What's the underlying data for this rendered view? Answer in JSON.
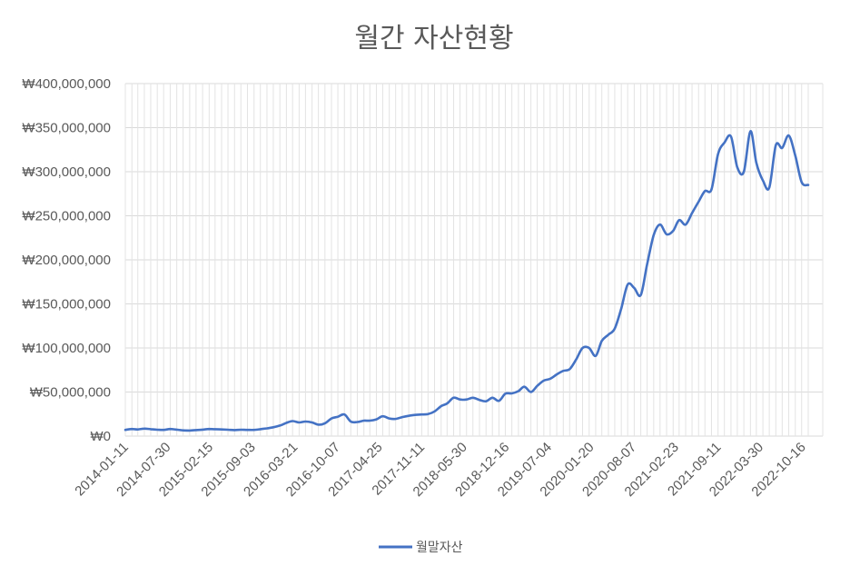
{
  "chart_data": {
    "type": "line",
    "title": "월간 자산현황",
    "xlabel": "",
    "ylabel": "",
    "ylim": [
      0,
      400000000
    ],
    "y_ticks": [
      0,
      50000000,
      100000000,
      150000000,
      200000000,
      250000000,
      300000000,
      350000000,
      400000000
    ],
    "y_tick_labels": [
      "₩0",
      "₩50,000,000",
      "₩100,000,000",
      "₩150,000,000",
      "₩200,000,000",
      "₩250,000,000",
      "₩300,000,000",
      "₩350,000,000",
      "₩400,000,000"
    ],
    "x_tick_labels": [
      "2014-01-11",
      "2014-07-30",
      "2015-02-15",
      "2015-09-03",
      "2016-03-21",
      "2016-10-07",
      "2017-04-25",
      "2017-11-11",
      "2018-05-30",
      "2018-12-16",
      "2019-07-04",
      "2020-01-20",
      "2020-08-07",
      "2021-02-23",
      "2021-09-11",
      "2022-03-30",
      "2022-10-16"
    ],
    "grid": "vertical and horizontal",
    "legend_position": "bottom",
    "line_color": "#4472C4",
    "series": [
      {
        "name": "월말자산",
        "points": [
          [
            "2014-01-11",
            7000000
          ],
          [
            "2014-02-11",
            8000000
          ],
          [
            "2014-03-11",
            7500000
          ],
          [
            "2014-04-11",
            8500000
          ],
          [
            "2014-05-11",
            7800000
          ],
          [
            "2014-06-11",
            7200000
          ],
          [
            "2014-07-11",
            7000000
          ],
          [
            "2014-08-11",
            8000000
          ],
          [
            "2014-09-11",
            7300000
          ],
          [
            "2014-10-11",
            6500000
          ],
          [
            "2014-11-11",
            6300000
          ],
          [
            "2014-12-11",
            6800000
          ],
          [
            "2015-01-11",
            7300000
          ],
          [
            "2015-02-11",
            8000000
          ],
          [
            "2015-03-11",
            7800000
          ],
          [
            "2015-04-11",
            7500000
          ],
          [
            "2015-05-11",
            7200000
          ],
          [
            "2015-06-11",
            6800000
          ],
          [
            "2015-07-11",
            7200000
          ],
          [
            "2015-08-11",
            7000000
          ],
          [
            "2015-09-11",
            7000000
          ],
          [
            "2015-10-11",
            7800000
          ],
          [
            "2015-11-11",
            8800000
          ],
          [
            "2015-12-11",
            10000000
          ],
          [
            "2016-01-11",
            12000000
          ],
          [
            "2016-02-11",
            15000000
          ],
          [
            "2016-03-11",
            17000000
          ],
          [
            "2016-04-11",
            15500000
          ],
          [
            "2016-05-11",
            16500000
          ],
          [
            "2016-06-11",
            15500000
          ],
          [
            "2016-07-11",
            13000000
          ],
          [
            "2016-08-11",
            14500000
          ],
          [
            "2016-09-11",
            20000000
          ],
          [
            "2016-10-11",
            22000000
          ],
          [
            "2016-11-11",
            24500000
          ],
          [
            "2016-12-11",
            16500000
          ],
          [
            "2017-01-11",
            16000000
          ],
          [
            "2017-02-11",
            17500000
          ],
          [
            "2017-03-11",
            17500000
          ],
          [
            "2017-04-11",
            19000000
          ],
          [
            "2017-05-11",
            22500000
          ],
          [
            "2017-06-11",
            20000000
          ],
          [
            "2017-07-11",
            19500000
          ],
          [
            "2017-08-11",
            21500000
          ],
          [
            "2017-09-11",
            23000000
          ],
          [
            "2017-10-11",
            24000000
          ],
          [
            "2017-11-11",
            24500000
          ],
          [
            "2017-12-11",
            25000000
          ],
          [
            "2018-01-11",
            28000000
          ],
          [
            "2018-02-11",
            34000000
          ],
          [
            "2018-03-11",
            37000000
          ],
          [
            "2018-04-11",
            43500000
          ],
          [
            "2018-05-11",
            41500000
          ],
          [
            "2018-06-11",
            41500000
          ],
          [
            "2018-07-11",
            43500000
          ],
          [
            "2018-08-11",
            41000000
          ],
          [
            "2018-09-11",
            39500000
          ],
          [
            "2018-10-11",
            43500000
          ],
          [
            "2018-11-11",
            40000000
          ],
          [
            "2018-12-11",
            48000000
          ],
          [
            "2019-01-11",
            48500000
          ],
          [
            "2019-02-11",
            51000000
          ],
          [
            "2019-03-11",
            56000000
          ],
          [
            "2019-04-11",
            50000000
          ],
          [
            "2019-05-11",
            57000000
          ],
          [
            "2019-06-11",
            63000000
          ],
          [
            "2019-07-11",
            65000000
          ],
          [
            "2019-08-11",
            70000000
          ],
          [
            "2019-09-11",
            74000000
          ],
          [
            "2019-10-11",
            76000000
          ],
          [
            "2019-11-11",
            87000000
          ],
          [
            "2019-12-11",
            100000000
          ],
          [
            "2020-01-11",
            100000000
          ],
          [
            "2020-02-11",
            91000000
          ],
          [
            "2020-03-11",
            108000000
          ],
          [
            "2020-04-11",
            115000000
          ],
          [
            "2020-05-11",
            122000000
          ],
          [
            "2020-06-11",
            145000000
          ],
          [
            "2020-07-11",
            172000000
          ],
          [
            "2020-08-11",
            168000000
          ],
          [
            "2020-09-11",
            160000000
          ],
          [
            "2020-10-11",
            195000000
          ],
          [
            "2020-11-11",
            228000000
          ],
          [
            "2020-12-11",
            240000000
          ],
          [
            "2021-01-11",
            229000000
          ],
          [
            "2021-02-11",
            233000000
          ],
          [
            "2021-03-11",
            245000000
          ],
          [
            "2021-04-11",
            240000000
          ],
          [
            "2021-05-11",
            253000000
          ],
          [
            "2021-06-11",
            266000000
          ],
          [
            "2021-07-11",
            278000000
          ],
          [
            "2021-08-11",
            280000000
          ],
          [
            "2021-09-11",
            320000000
          ],
          [
            "2021-10-11",
            333000000
          ],
          [
            "2021-11-11",
            340000000
          ],
          [
            "2021-12-11",
            305000000
          ],
          [
            "2022-01-11",
            300000000
          ],
          [
            "2022-02-11",
            346000000
          ],
          [
            "2022-03-11",
            310000000
          ],
          [
            "2022-04-11",
            290000000
          ],
          [
            "2022-05-11",
            282000000
          ],
          [
            "2022-06-11",
            330000000
          ],
          [
            "2022-07-11",
            327000000
          ],
          [
            "2022-08-11",
            341000000
          ],
          [
            "2022-09-11",
            318000000
          ],
          [
            "2022-10-11",
            288000000
          ],
          [
            "2022-11-11",
            285000000
          ]
        ]
      }
    ]
  }
}
